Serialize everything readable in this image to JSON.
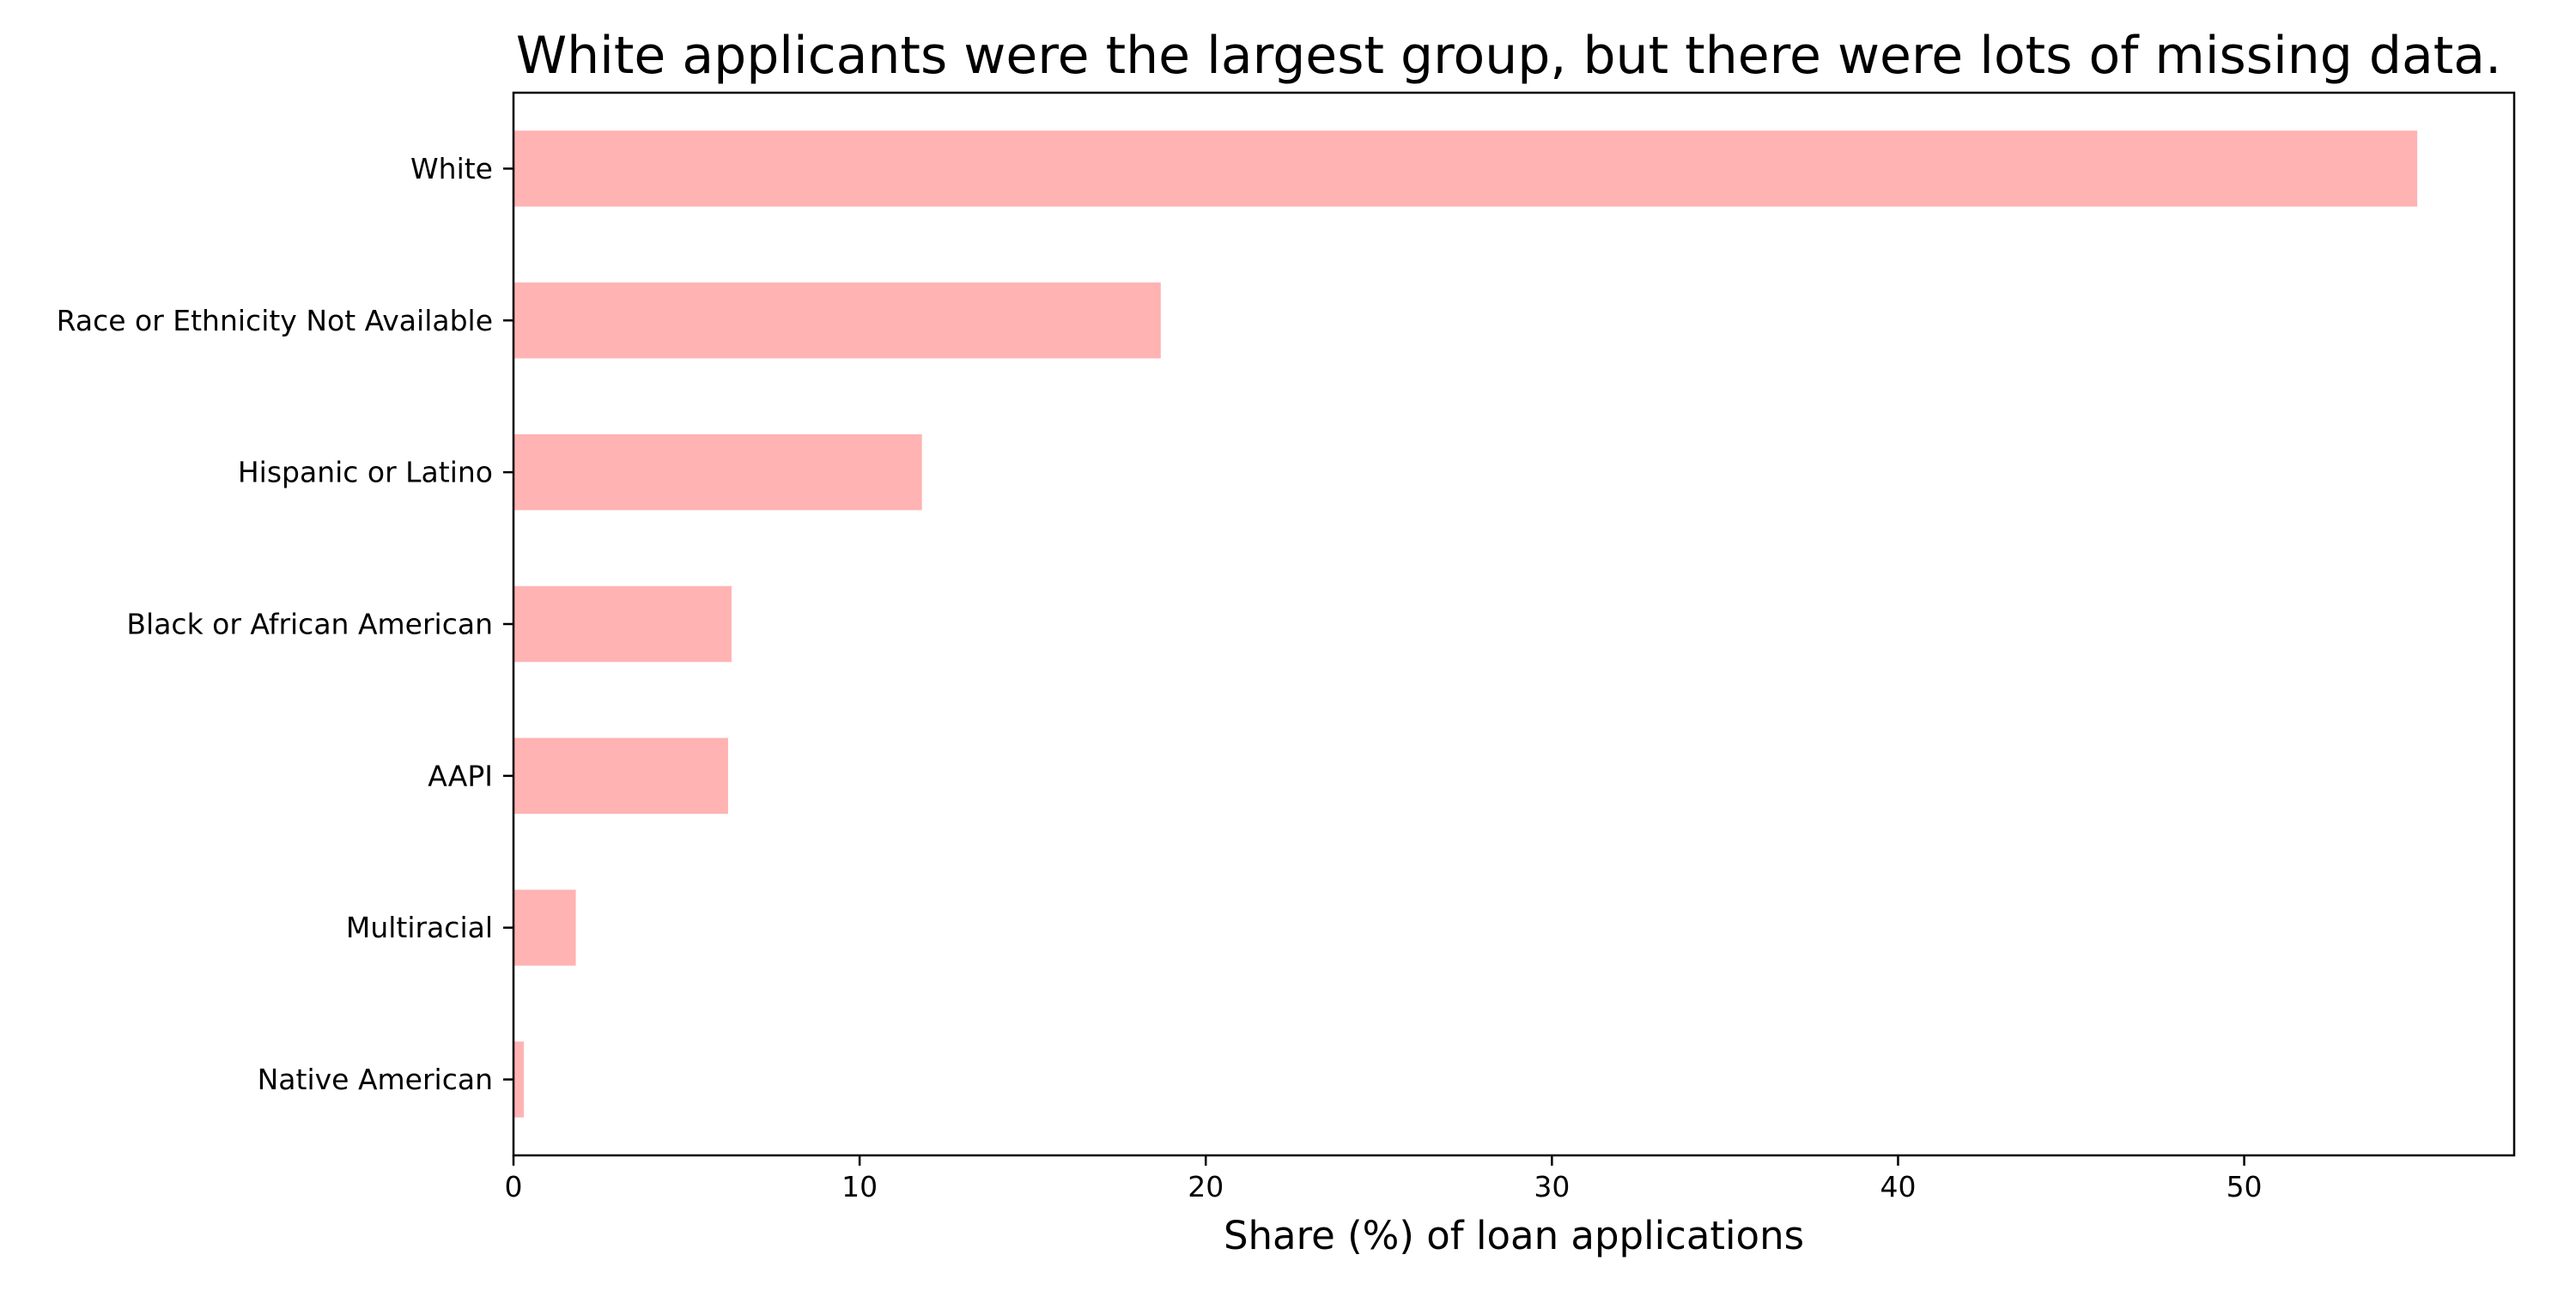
{
  "chart_data": {
    "type": "bar",
    "orientation": "horizontal",
    "title": "White applicants were the largest group, but there were lots of missing data.",
    "xlabel": "Share (%) of loan applications",
    "ylabel": "",
    "categories": [
      "White",
      "Race or Ethnicity Not Available",
      "Hispanic or Latino",
      "Black or African American",
      "AAPI",
      "Multiracial",
      "Native American"
    ],
    "values": [
      55.0,
      18.7,
      11.8,
      6.3,
      6.2,
      1.8,
      0.3
    ],
    "xlim": [
      0,
      57.8
    ],
    "xticks": [
      0,
      10,
      20,
      30,
      40,
      50
    ],
    "grid": false,
    "legend": "none",
    "bar_color": "#ffb3b3"
  }
}
